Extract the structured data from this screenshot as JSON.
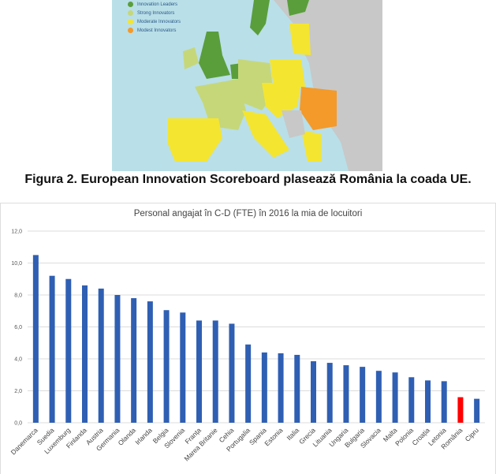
{
  "map": {
    "legend": [
      {
        "label": "Innovation Leaders",
        "color": "#5a9e3c"
      },
      {
        "label": "Strong Innovators",
        "color": "#c6d77a"
      },
      {
        "label": "Moderate Innovators",
        "color": "#f4e530"
      },
      {
        "label": "Modest Innovators",
        "color": "#f39a2a"
      }
    ]
  },
  "caption": "Figura 2. European Innovation Scoreboard plasează România la coada UE.",
  "chart_data": {
    "type": "bar",
    "title": "Personal angajat în C-D (FTE) în 2016 la mia de locuitori",
    "xlabel": "",
    "ylabel": "",
    "ylim": [
      0,
      12
    ],
    "yticks": [
      "0,0",
      "2,0",
      "4,0",
      "6,0",
      "8,0",
      "10,0",
      "12,0"
    ],
    "grid": true,
    "bar_color": "#2f5fb3",
    "highlight_color": "#ff0000",
    "highlight": "România",
    "categories": [
      "Danemarca",
      "Suedia",
      "Luxemburg",
      "Finlanda",
      "Austria",
      "Germania",
      "Olanda",
      "Irlanda",
      "Belgia",
      "Slovenia",
      "Franța",
      "Marea Britanie",
      "Cehia",
      "Portugalia",
      "Spania",
      "Estonia",
      "Italia",
      "Grecia",
      "Lituania",
      "Ungaria",
      "Bulgaria",
      "Slovacia",
      "Malta",
      "Polonia",
      "Croația",
      "Letonia",
      "România",
      "Cipru"
    ],
    "values": [
      10.5,
      9.2,
      9.0,
      8.6,
      8.4,
      8.0,
      7.8,
      7.6,
      7.05,
      6.9,
      6.4,
      6.4,
      6.2,
      4.9,
      4.4,
      4.35,
      4.25,
      3.85,
      3.75,
      3.6,
      3.5,
      3.25,
      3.15,
      2.85,
      2.65,
      2.6,
      1.6,
      1.5
    ]
  }
}
